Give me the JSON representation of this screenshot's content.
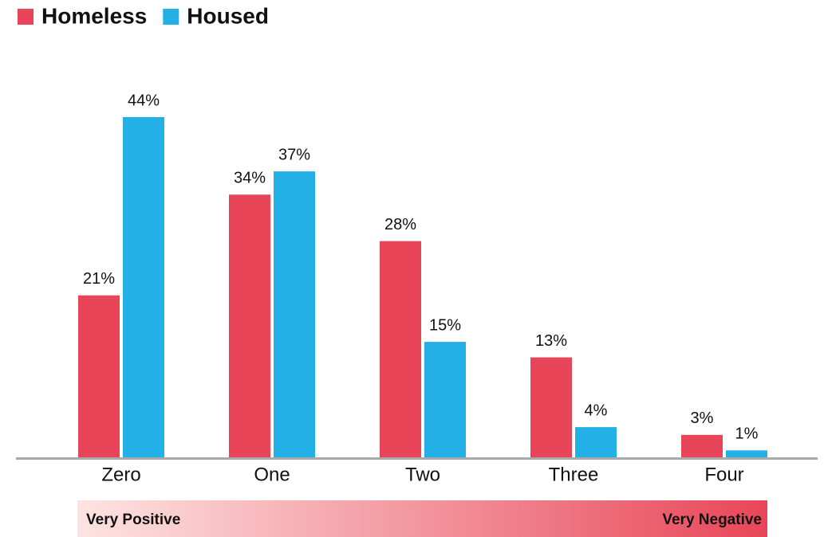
{
  "chart_data": {
    "type": "bar",
    "categories": [
      "Zero",
      "One",
      "Two",
      "Three",
      "Four"
    ],
    "series": [
      {
        "name": "Homeless",
        "color": "#e84658",
        "values": [
          21,
          34,
          28,
          13,
          3
        ],
        "value_labels": [
          "21%",
          "34%",
          "28%",
          "13%",
          "3%"
        ]
      },
      {
        "name": "Housed",
        "color": "#23b0e6",
        "values": [
          44,
          37,
          15,
          4,
          1
        ],
        "value_labels": [
          "44%",
          "37%",
          "15%",
          "4%",
          "1%"
        ]
      }
    ],
    "legend": "top-left",
    "annotations": [
      "Very Positive",
      "Very Negative"
    ],
    "gradient": [
      "#fde4e2",
      "#e84658"
    ]
  }
}
